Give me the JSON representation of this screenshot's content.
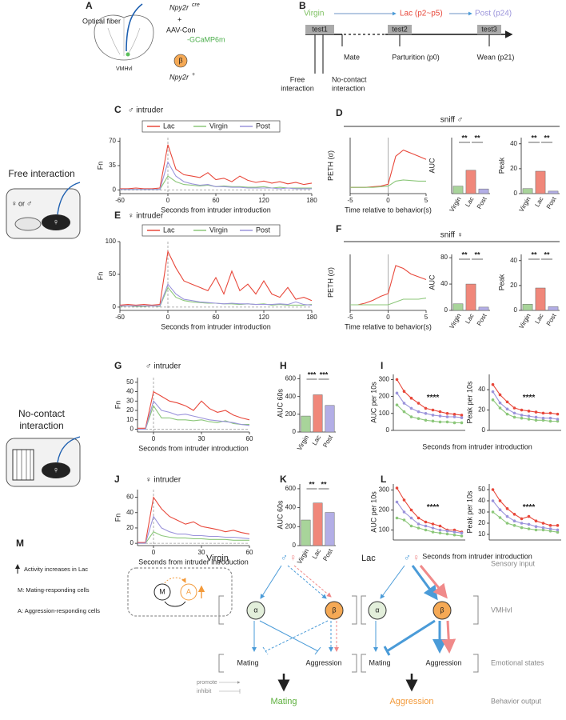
{
  "letters": {
    "A": "A",
    "B": "B",
    "C": "C",
    "D": "D",
    "E": "E",
    "F": "F",
    "G": "G",
    "H": "H",
    "I": "I",
    "J": "J",
    "K": "K",
    "L": "L",
    "M": "M"
  },
  "panel_a": {
    "fiber": "Optical fiber",
    "gene": "Npy2r",
    "gene_sup": "cre",
    "plus": "+",
    "virus": "AAV-Con",
    "virus_2": "-GCaMP6m",
    "region": "VMHvl",
    "cell": "β",
    "cell_gene": "Npy2r",
    "cell_sup": "+"
  },
  "panel_b": {
    "virgin": "Virgin",
    "lac": "Lac (p2~p5)",
    "post": "Post (p24)",
    "test1": "test1",
    "test2": "test2",
    "test3": "test3",
    "mate": "Mate",
    "parturition": "Parturition (p0)",
    "wean": "Wean (p21)",
    "free_1": "Free",
    "free_2": "interaction",
    "no_contact_1": "No-contact",
    "no_contact_2": "interaction"
  },
  "side": {
    "free": "Free interaction",
    "female": "♀",
    "or": "or",
    "male": "♂",
    "mouse_sex": "♀",
    "no_contact_1": "No-contact",
    "no_contact_2": "interaction",
    "cage_mouse_sex": "♀"
  },
  "sniff": {
    "male": "sniff ♂",
    "female": "sniff ♀"
  },
  "panel_m": {
    "activity": "Activity increases in Lac",
    "m_cells": "M: Mating-responding cells",
    "a_cells": "A: Aggression-responding cells",
    "m": "M",
    "a": "A",
    "virgin": "Virgin",
    "lac": "Lac",
    "male": "♂",
    "female": "♀",
    "alpha": "α",
    "beta": "β",
    "mating": "Mating",
    "aggression": "Aggression",
    "out_virgin": "Mating",
    "out_lac": "Aggression",
    "sensory": "Sensory input",
    "vmhvl": "VMHvl",
    "emotional": "Emotional states",
    "behavior": "Behavior output",
    "promote": "promote",
    "inhibit": "inhibit"
  },
  "chart_data": [
    {
      "type": "line",
      "title": "♂ intruder",
      "xlabel": "Seconds from intruder introduction",
      "ylabel": "Fn",
      "legend": "top",
      "x": [
        -60,
        -50,
        -40,
        -30,
        -20,
        -10,
        0,
        10,
        20,
        30,
        40,
        50,
        60,
        70,
        80,
        90,
        100,
        110,
        120,
        130,
        140,
        150,
        160,
        170,
        180
      ],
      "xlim": [
        -60,
        180
      ],
      "xticks": [
        -60,
        0,
        60,
        120,
        180
      ],
      "ylim": [
        -5,
        75
      ],
      "yticks": [
        0,
        35,
        70
      ],
      "series": [
        {
          "name": "Lac",
          "color": "#e8483b",
          "values": [
            2,
            2,
            3,
            2,
            2,
            3,
            65,
            30,
            22,
            20,
            18,
            25,
            15,
            17,
            12,
            20,
            14,
            11,
            13,
            10,
            12,
            9,
            11,
            8,
            10
          ]
        },
        {
          "name": "Virgin",
          "color": "#8cc77a",
          "values": [
            1,
            1,
            1,
            1,
            1,
            1,
            20,
            12,
            8,
            7,
            6,
            7,
            5,
            6,
            5,
            5,
            4,
            4,
            5,
            3,
            4,
            3,
            3,
            3,
            3
          ]
        },
        {
          "name": "Post",
          "color": "#9b94db",
          "values": [
            1,
            1,
            1,
            1,
            1,
            1,
            40,
            20,
            12,
            9,
            7,
            8,
            5,
            5,
            4,
            4,
            3,
            3,
            3,
            3,
            2,
            3,
            2,
            2,
            2
          ]
        }
      ]
    },
    {
      "type": "line",
      "xlabel": "Time relative to behavior(s)",
      "ylabel": "PETH (σ)",
      "x": [
        -5,
        -4,
        -3,
        -2,
        -1,
        0,
        1,
        2,
        3,
        4,
        5
      ],
      "xlim": [
        -5,
        5
      ],
      "xticks": [
        -5,
        0,
        5
      ],
      "ylim": [
        -1,
        8
      ],
      "series": [
        {
          "color": "#e8483b",
          "values": [
            0,
            0,
            0,
            0.1,
            0.2,
            0.5,
            5,
            6,
            5.5,
            5,
            4.5
          ]
        },
        {
          "color": "#8cc77a",
          "values": [
            0,
            0,
            0,
            0,
            0.1,
            0.2,
            1,
            1.2,
            1.1,
            1,
            1
          ]
        }
      ]
    },
    {
      "type": "bar",
      "ylabel": "AUC",
      "categories": [
        "Virgin",
        "Lac",
        "Post"
      ],
      "values": [
        8,
        25,
        5
      ],
      "colors": [
        "#a8d49a",
        "#f0877a",
        "#b3aee6"
      ],
      "ylim": [
        0,
        60
      ],
      "annotations": [
        "**",
        "**"
      ]
    },
    {
      "type": "bar",
      "ylabel": "Peak",
      "categories": [
        "Virgin",
        "Lac",
        "Post"
      ],
      "values": [
        4,
        18,
        2
      ],
      "colors": [
        "#a8d49a",
        "#f0877a",
        "#b3aee6"
      ],
      "ylim": [
        0,
        45
      ],
      "yticks": [
        0,
        20,
        40
      ],
      "annotations": [
        "**",
        "**"
      ]
    },
    {
      "type": "line",
      "title": "♀ intruder",
      "xlabel": "Seconds from intruder introduction",
      "ylabel": "Fn",
      "legend": "top",
      "x": [
        -60,
        -50,
        -40,
        -30,
        -20,
        -10,
        0,
        10,
        20,
        30,
        40,
        50,
        60,
        70,
        80,
        90,
        100,
        110,
        120,
        130,
        140,
        150,
        160,
        170,
        180
      ],
      "xlim": [
        -60,
        180
      ],
      "xticks": [
        -60,
        0,
        60,
        120,
        180
      ],
      "ylim": [
        -5,
        100
      ],
      "yticks": [
        0,
        50,
        100
      ],
      "series": [
        {
          "name": "Lac",
          "color": "#e8483b",
          "values": [
            3,
            4,
            3,
            4,
            3,
            4,
            85,
            60,
            40,
            35,
            30,
            25,
            45,
            20,
            55,
            25,
            35,
            20,
            40,
            20,
            15,
            30,
            12,
            15,
            10
          ]
        },
        {
          "name": "Virgin",
          "color": "#8cc77a",
          "values": [
            1,
            2,
            1,
            1,
            2,
            1,
            30,
            15,
            10,
            8,
            7,
            6,
            6,
            5,
            5,
            4,
            5,
            4,
            5,
            3,
            4,
            3,
            3,
            3,
            4
          ]
        },
        {
          "name": "Post",
          "color": "#9b94db",
          "values": [
            2,
            2,
            2,
            2,
            2,
            2,
            35,
            20,
            12,
            10,
            8,
            7,
            6,
            5,
            6,
            5,
            5,
            4,
            4,
            4,
            5,
            4,
            8,
            4,
            3
          ]
        }
      ]
    },
    {
      "type": "line",
      "xlabel": "Time relative to behavior(s)",
      "ylabel": "PETH (σ)",
      "x": [
        -5,
        -4,
        -3,
        -2,
        -1,
        0,
        1,
        2,
        3,
        4,
        5
      ],
      "xlim": [
        -5,
        5
      ],
      "xticks": [
        -5,
        0,
        5
      ],
      "ylim": [
        -1,
        9
      ],
      "series": [
        {
          "color": "#e8483b",
          "values": [
            0,
            0,
            0.3,
            0.8,
            1.5,
            2,
            7,
            6.5,
            5.5,
            5,
            4.5
          ]
        },
        {
          "color": "#8cc77a",
          "values": [
            0,
            0,
            0,
            0,
            0,
            0,
            0.5,
            1,
            1,
            1,
            1.2
          ]
        }
      ]
    },
    {
      "type": "bar",
      "ylabel": "AUC",
      "categories": [
        "Virgin",
        "Lac",
        "Post"
      ],
      "values": [
        10,
        40,
        5
      ],
      "colors": [
        "#a8d49a",
        "#f0877a",
        "#b3aee6"
      ],
      "ylim": [
        0,
        85
      ],
      "yticks": [
        0,
        40,
        80
      ],
      "annotations": [
        "**",
        "**"
      ]
    },
    {
      "type": "bar",
      "ylabel": "Peak",
      "categories": [
        "Virgin",
        "Lac",
        "Post"
      ],
      "values": [
        5,
        18,
        3
      ],
      "colors": [
        "#a8d49a",
        "#f0877a",
        "#b3aee6"
      ],
      "ylim": [
        0,
        45
      ],
      "yticks": [
        0,
        20,
        40
      ],
      "annotations": [
        "**",
        "**"
      ]
    },
    {
      "type": "line",
      "title": "♂ intruder",
      "xlabel": "Seconds from intruder introduction",
      "ylabel": "Fn",
      "x": [
        -10,
        -5,
        0,
        5,
        10,
        15,
        20,
        25,
        30,
        35,
        40,
        45,
        50,
        55,
        60
      ],
      "xlim": [
        -10,
        60
      ],
      "xticks": [
        0,
        30,
        60
      ],
      "ylim": [
        -3,
        55
      ],
      "yticks": [
        0,
        10,
        20,
        30,
        40,
        50
      ],
      "series": [
        {
          "color": "#e8483b",
          "values": [
            1,
            1,
            40,
            35,
            30,
            28,
            25,
            20,
            30,
            22,
            18,
            20,
            15,
            12,
            10
          ]
        },
        {
          "color": "#8cc77a",
          "values": [
            0,
            0,
            25,
            12,
            12,
            10,
            10,
            9,
            10,
            8,
            7,
            9,
            6,
            5,
            5
          ]
        },
        {
          "color": "#9b94db",
          "values": [
            0,
            0,
            30,
            20,
            18,
            15,
            16,
            14,
            12,
            10,
            9,
            8,
            7,
            5,
            4
          ]
        }
      ]
    },
    {
      "type": "bar",
      "ylabel": "AUC 60s",
      "categories": [
        "Virgin",
        "Lac",
        "Post"
      ],
      "values": [
        180,
        420,
        300
      ],
      "colors": [
        "#a8d49a",
        "#f0877a",
        "#b3aee6"
      ],
      "ylim": [
        0,
        650
      ],
      "yticks": [
        0,
        200,
        400,
        600
      ],
      "annotations": [
        "***",
        "***"
      ]
    },
    {
      "type": "line",
      "ylabel": "AUC per 10s",
      "xlabel": "Seconds from intruder introduction",
      "markers": true,
      "categories": [
        null,
        null,
        null,
        null,
        null,
        null,
        null,
        null,
        null,
        null
      ],
      "ylim": [
        0,
        330
      ],
      "yticks": [
        0,
        100,
        200,
        300
      ],
      "annotations": [
        "****"
      ],
      "series": [
        {
          "color": "#e8483b",
          "values": [
            300,
            230,
            190,
            160,
            130,
            120,
            110,
            100,
            95,
            90
          ]
        },
        {
          "color": "#8cc77a",
          "values": [
            150,
            110,
            80,
            70,
            60,
            55,
            50,
            50,
            45,
            45
          ]
        },
        {
          "color": "#9b94db",
          "values": [
            220,
            160,
            130,
            110,
            100,
            90,
            85,
            80,
            80,
            75
          ]
        }
      ]
    },
    {
      "type": "line",
      "ylabel": "Peak per 10s",
      "markers": true,
      "categories": [
        null,
        null,
        null,
        null,
        null,
        null,
        null,
        null,
        null,
        null
      ],
      "ylim": [
        0,
        55
      ],
      "yticks": [
        0,
        20,
        40
      ],
      "annotations": [
        "****"
      ],
      "series": [
        {
          "color": "#e8483b",
          "values": [
            45,
            35,
            28,
            22,
            20,
            19,
            18,
            17,
            17,
            16
          ]
        },
        {
          "color": "#8cc77a",
          "values": [
            30,
            22,
            16,
            13,
            12,
            11,
            10,
            10,
            9,
            9
          ]
        },
        {
          "color": "#9b94db",
          "values": [
            38,
            27,
            21,
            17,
            15,
            14,
            13,
            12,
            12,
            11
          ]
        }
      ]
    },
    {
      "type": "line",
      "title": "♀ intruder",
      "xlabel": "Seconds from intruder introduction",
      "ylabel": "Fn",
      "x": [
        -10,
        -5,
        0,
        5,
        10,
        15,
        20,
        25,
        30,
        35,
        40,
        45,
        50,
        55,
        60
      ],
      "xlim": [
        -10,
        60
      ],
      "xticks": [
        0,
        30,
        60
      ],
      "ylim": [
        -3,
        70
      ],
      "yticks": [
        0,
        20,
        40,
        60
      ],
      "series": [
        {
          "color": "#e8483b",
          "values": [
            1,
            1,
            60,
            45,
            35,
            30,
            25,
            28,
            22,
            20,
            18,
            15,
            17,
            14,
            12
          ]
        },
        {
          "color": "#8cc77a",
          "values": [
            0,
            0,
            15,
            10,
            8,
            7,
            7,
            6,
            6,
            5,
            5,
            5,
            4,
            4,
            4
          ]
        },
        {
          "color": "#9b94db",
          "values": [
            0,
            0,
            35,
            20,
            15,
            12,
            12,
            10,
            10,
            9,
            9,
            8,
            8,
            7,
            6
          ]
        }
      ]
    },
    {
      "type": "bar",
      "ylabel": "AUC 60s",
      "categories": [
        "Virgin",
        "Lac",
        "Post"
      ],
      "values": [
        270,
        450,
        350
      ],
      "colors": [
        "#a8d49a",
        "#f0877a",
        "#b3aee6"
      ],
      "ylim": [
        0,
        650
      ],
      "yticks": [
        0,
        200,
        400,
        600
      ],
      "annotations": [
        "**",
        "**"
      ]
    },
    {
      "type": "line",
      "ylabel": "AUC per 10s",
      "xlabel": "Seconds from intruder introduction",
      "markers": true,
      "categories": [
        null,
        null,
        null,
        null,
        null,
        null,
        null,
        null,
        null,
        null
      ],
      "ylim": [
        50,
        330
      ],
      "yticks": [
        100,
        200,
        300
      ],
      "annotations": [
        "****"
      ],
      "series": [
        {
          "color": "#e8483b",
          "values": [
            310,
            250,
            200,
            160,
            140,
            130,
            120,
            100,
            100,
            90
          ]
        },
        {
          "color": "#8cc77a",
          "values": [
            160,
            150,
            120,
            110,
            100,
            90,
            85,
            80,
            75,
            70
          ]
        },
        {
          "color": "#9b94db",
          "values": [
            240,
            190,
            160,
            130,
            120,
            110,
            100,
            95,
            90,
            85
          ]
        }
      ]
    },
    {
      "type": "line",
      "ylabel": "Peak per 10s",
      "markers": true,
      "categories": [
        null,
        null,
        null,
        null,
        null,
        null,
        null,
        null,
        null,
        null
      ],
      "ylim": [
        5,
        55
      ],
      "yticks": [
        10,
        20,
        30,
        40,
        50
      ],
      "annotations": [
        "****"
      ],
      "series": [
        {
          "color": "#e8483b",
          "values": [
            50,
            40,
            33,
            28,
            24,
            26,
            22,
            20,
            18,
            18
          ]
        },
        {
          "color": "#8cc77a",
          "values": [
            30,
            25,
            20,
            18,
            16,
            15,
            14,
            14,
            13,
            12
          ]
        },
        {
          "color": "#9b94db",
          "values": [
            40,
            32,
            26,
            22,
            20,
            19,
            17,
            16,
            15,
            14
          ]
        }
      ]
    }
  ]
}
